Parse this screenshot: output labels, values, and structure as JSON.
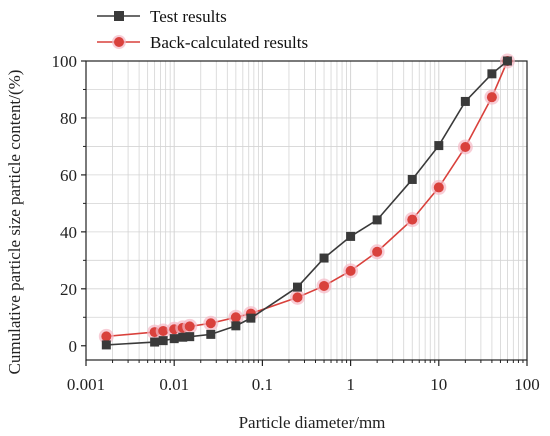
{
  "chart_data": {
    "type": "line",
    "xscale": "log",
    "xlim": [
      0.001,
      100
    ],
    "ylim": [
      -5,
      100
    ],
    "grid": true,
    "legend_position": "top-left",
    "xlabel": "Particle diameter/mm",
    "ylabel": "Cumulative particle size particle content/(%)",
    "x_ticks": [
      0.001,
      0.01,
      0.1,
      1,
      10,
      100
    ],
    "x_tick_labels": [
      "0.001",
      "0.01",
      "0.1",
      "1",
      "10",
      "100"
    ],
    "y_ticks": [
      0,
      20,
      40,
      60,
      80,
      100
    ],
    "y_tick_labels": [
      "0",
      "20",
      "40",
      "60",
      "80",
      "100"
    ],
    "series": [
      {
        "name": "Test results",
        "color": "#3a3a3a",
        "marker": "square",
        "x": [
          0.0017,
          0.006,
          0.0075,
          0.01,
          0.0125,
          0.015,
          0.026,
          0.05,
          0.074,
          0.25,
          0.5,
          1,
          2,
          5,
          10,
          20,
          40,
          60
        ],
        "y": [
          0.3,
          1.3,
          1.8,
          2.5,
          3.0,
          3.2,
          4.0,
          7.0,
          9.7,
          20.6,
          30.8,
          38.4,
          44.2,
          58.4,
          70.3,
          85.8,
          95.5,
          100
        ]
      },
      {
        "name": "Back-calculated results",
        "color": "#d9413c",
        "marker": "circle",
        "x": [
          0.0017,
          0.006,
          0.0075,
          0.01,
          0.0125,
          0.015,
          0.026,
          0.05,
          0.074,
          0.25,
          0.5,
          1,
          2,
          5,
          10,
          20,
          40,
          60
        ],
        "y": [
          3.3,
          4.8,
          5.2,
          5.8,
          6.3,
          6.8,
          7.9,
          10.0,
          11.3,
          17.0,
          21.0,
          26.3,
          33.0,
          44.3,
          55.6,
          69.8,
          87.3,
          100
        ]
      }
    ]
  }
}
